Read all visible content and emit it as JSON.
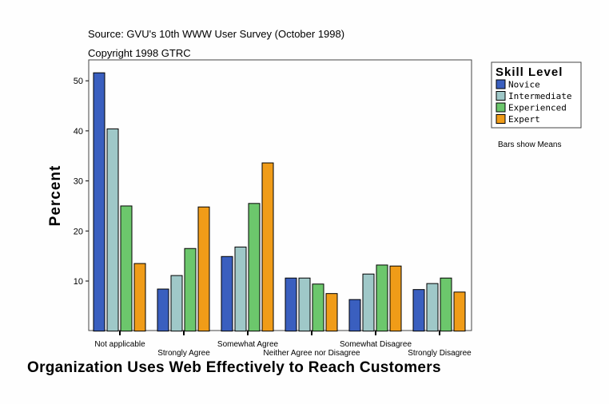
{
  "chart_data": {
    "type": "bar",
    "title": "Organization Uses Web Effectively to Reach Customers",
    "subtitles": [
      "Source: GVU's 10th WWW User Survey (October 1998)",
      "Copyright 1998 GTRC"
    ],
    "xlabel": "Organization Uses Web Effectively to Reach Customers",
    "ylabel": "Percent",
    "ylim": [
      0,
      54
    ],
    "yticks": [
      10,
      20,
      30,
      40,
      50
    ],
    "grid": false,
    "note": "Bars show Means",
    "legend": {
      "title": "Skill Level",
      "placement": "top-right"
    },
    "categories": [
      "Not applicable",
      "Strongly Agree",
      "Somewhat Agree",
      "Neither Agree nor Disagree",
      "Somewhat Disagree",
      "Strongly Disagree"
    ],
    "series": [
      {
        "name": "Novice",
        "color": "#3a5fbf",
        "values": [
          51.6,
          8.4,
          14.9,
          10.6,
          6.3,
          8.3
        ]
      },
      {
        "name": "Intermediate",
        "color": "#9fc8c8",
        "values": [
          40.4,
          11.1,
          16.8,
          10.6,
          11.4,
          9.5
        ]
      },
      {
        "name": "Experienced",
        "color": "#6cc76c",
        "values": [
          25.0,
          16.5,
          25.5,
          9.4,
          13.2,
          10.6
        ]
      },
      {
        "name": "Expert",
        "color": "#f09c18",
        "values": [
          13.5,
          24.8,
          33.6,
          7.5,
          13.0,
          7.8
        ]
      }
    ]
  }
}
